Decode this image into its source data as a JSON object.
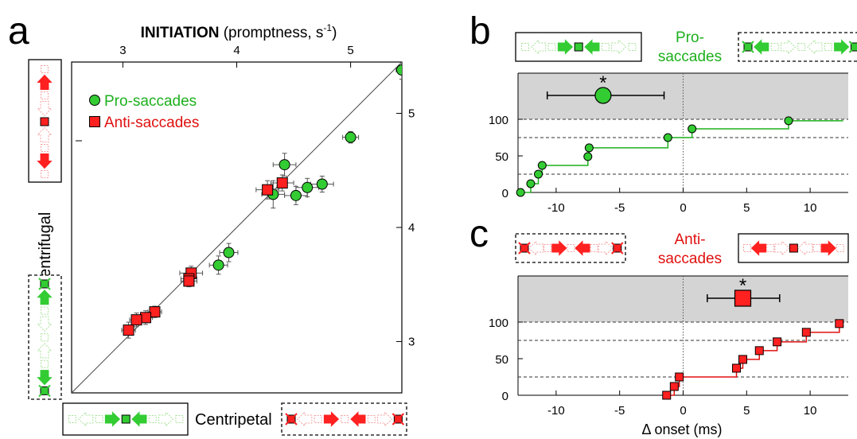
{
  "panels": {
    "a": {
      "letter": "a"
    },
    "b": {
      "letter": "b"
    },
    "c": {
      "letter": "c"
    }
  },
  "colors": {
    "pro": "#1db01d",
    "pro_fill": "#33cc33",
    "pro_light": "#a8e29a",
    "anti": "#e01010",
    "anti_fill": "#ff2020",
    "anti_light": "#f5a0a0",
    "shade": "#d4d4d4"
  },
  "chart_data": [
    {
      "type": "scatter",
      "panel": "a",
      "title_bold": "INITIATION",
      "title_rest": " (promptness, s",
      "title_sup": "-1",
      "title_end": ")",
      "xlabel": "Centripetal",
      "ylabel": "Centrifugal",
      "xlim": [
        2.55,
        5.45
      ],
      "ylim": [
        2.55,
        5.45
      ],
      "xticks": [
        3,
        4,
        5
      ],
      "yticks": [
        3,
        4,
        5
      ],
      "legend": {
        "placement": "top-left",
        "pro": "Pro-saccades",
        "anti": "Anti-saccades"
      },
      "series": [
        {
          "name": "Pro-saccades",
          "marker": "circle",
          "points": [
            {
              "x": 5.45,
              "y": 5.38,
              "ex": 0.05,
              "ey": 0.08
            },
            {
              "x": 5.0,
              "y": 4.79,
              "ex": 0.07,
              "ey": 0.05
            },
            {
              "x": 4.42,
              "y": 4.55,
              "ex": 0.1,
              "ey": 0.1
            },
            {
              "x": 4.32,
              "y": 4.29,
              "ex": 0.1,
              "ey": 0.12
            },
            {
              "x": 4.52,
              "y": 4.28,
              "ex": 0.1,
              "ey": 0.08
            },
            {
              "x": 4.62,
              "y": 4.35,
              "ex": 0.1,
              "ey": 0.08
            },
            {
              "x": 4.75,
              "y": 4.38,
              "ex": 0.1,
              "ey": 0.07
            },
            {
              "x": 3.84,
              "y": 3.67,
              "ex": 0.08,
              "ey": 0.08
            },
            {
              "x": 3.93,
              "y": 3.78,
              "ex": 0.08,
              "ey": 0.08
            }
          ]
        },
        {
          "name": "Anti-saccades",
          "marker": "square",
          "points": [
            {
              "x": 4.27,
              "y": 4.33,
              "ex": 0.1,
              "ey": 0.08
            },
            {
              "x": 4.4,
              "y": 4.39,
              "ex": 0.1,
              "ey": 0.07
            },
            {
              "x": 3.6,
              "y": 3.6,
              "ex": 0.1,
              "ey": 0.06
            },
            {
              "x": 3.58,
              "y": 3.55,
              "ex": 0.07,
              "ey": 0.05
            },
            {
              "x": 3.58,
              "y": 3.53,
              "ex": 0.07,
              "ey": 0.05
            },
            {
              "x": 3.28,
              "y": 3.26,
              "ex": 0.06,
              "ey": 0.05
            },
            {
              "x": 3.2,
              "y": 3.21,
              "ex": 0.06,
              "ey": 0.06
            },
            {
              "x": 3.12,
              "y": 3.19,
              "ex": 0.06,
              "ey": 0.06
            },
            {
              "x": 3.05,
              "y": 3.1,
              "ex": 0.06,
              "ey": 0.07
            }
          ]
        }
      ]
    },
    {
      "type": "line",
      "panel": "b",
      "label_line1": "Pro-",
      "label_line2": "saccades",
      "xlim": [
        -13,
        13
      ],
      "ylim": [
        0,
        100
      ],
      "xticks": [
        -10,
        -5,
        0,
        5,
        10
      ],
      "yticks": [
        0,
        50,
        100
      ],
      "dashed_y": [
        25,
        75,
        100
      ],
      "summary": {
        "mean": -6.3,
        "ci": [
          -10.7,
          -1.5
        ],
        "star": "*"
      },
      "series": [
        {
          "name": "",
          "marker": "circle",
          "x": [
            -12.8,
            -12.0,
            -11.4,
            -11.1,
            -7.5,
            -7.4,
            -1.2,
            0.7,
            8.3
          ],
          "y": [
            0,
            12,
            25,
            37,
            49,
            61,
            75,
            87,
            98
          ]
        }
      ]
    },
    {
      "type": "line",
      "panel": "c",
      "label_line1": "Anti-",
      "label_line2": "saccades",
      "xlabel": "Δ onset (ms)",
      "xlim": [
        -13,
        13
      ],
      "ylim": [
        0,
        100
      ],
      "xticks": [
        -10,
        -5,
        0,
        5,
        10
      ],
      "yticks": [
        0,
        50,
        100
      ],
      "dashed_y": [
        25,
        75,
        100
      ],
      "summary": {
        "mean": 4.7,
        "ci": [
          1.9,
          7.6
        ],
        "star": "*"
      },
      "series": [
        {
          "name": "",
          "marker": "square",
          "x": [
            -1.3,
            -0.7,
            -0.3,
            4.2,
            4.7,
            6.0,
            7.4,
            9.7,
            12.3
          ],
          "y": [
            0,
            12,
            25,
            37,
            49,
            61,
            73,
            86,
            98
          ]
        }
      ]
    }
  ]
}
